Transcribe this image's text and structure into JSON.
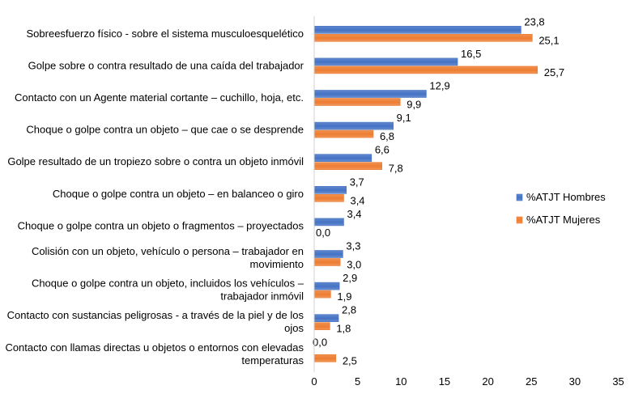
{
  "chart_data": {
    "type": "bar",
    "orientation": "horizontal",
    "categories": [
      [
        "Sobreesfuerzo físico - sobre el sistema musculoesquelético"
      ],
      [
        "Golpe sobre o contra resultado de una caída del trabajador"
      ],
      [
        "Contacto con un Agente material cortante –  cuchillo, hoja, etc."
      ],
      [
        "Choque o golpe contra un objeto – que cae o se desprende"
      ],
      [
        "Golpe resultado de un tropiezo sobre o contra un objeto inmóvil"
      ],
      [
        "Choque o golpe contra un objeto – en balanceo o giro"
      ],
      [
        "Choque o golpe contra un objeto o fragmentos – proyectados"
      ],
      [
        "Colisión con un objeto, vehículo o persona – trabajador en",
        "movimiento"
      ],
      [
        "Choque o golpe contra un objeto, incluidos los vehículos –",
        "trabajador inmóvil"
      ],
      [
        "Contacto con sustancias peligrosas - a través de la piel y de los",
        "ojos"
      ],
      [
        "Contacto con llamas directas u objetos o entornos con elevadas",
        "temperaturas"
      ]
    ],
    "series": [
      {
        "name": "%ATJT Hombres",
        "color": "#4472C4",
        "values": [
          23.8,
          16.5,
          12.9,
          9.1,
          6.6,
          3.7,
          3.4,
          3.3,
          2.9,
          2.8,
          0.0
        ],
        "labels": [
          "23,8",
          "16,5",
          "12,9",
          "9,1",
          "6,6",
          "3,7",
          "3,4",
          "3,3",
          "2,9",
          "2,8",
          "0,0"
        ]
      },
      {
        "name": "%ATJT Mujeres",
        "color": "#ED7D31",
        "values": [
          25.1,
          25.7,
          9.9,
          6.8,
          7.8,
          3.4,
          0.0,
          3.0,
          1.9,
          1.8,
          2.5
        ],
        "labels": [
          "25,1",
          "25,7",
          "9,9",
          "6,8",
          "7,8",
          "3,4",
          "0,0",
          "3,0",
          "1,9",
          "1,8",
          "2,5"
        ]
      }
    ],
    "xlim": [
      0,
      35
    ],
    "xticks": [
      0,
      5,
      10,
      15,
      20,
      25,
      30,
      35
    ],
    "xtick_labels": [
      "0",
      "5",
      "10",
      "15",
      "20",
      "25",
      "30",
      "35"
    ],
    "legend_position": "right",
    "grid": false
  }
}
